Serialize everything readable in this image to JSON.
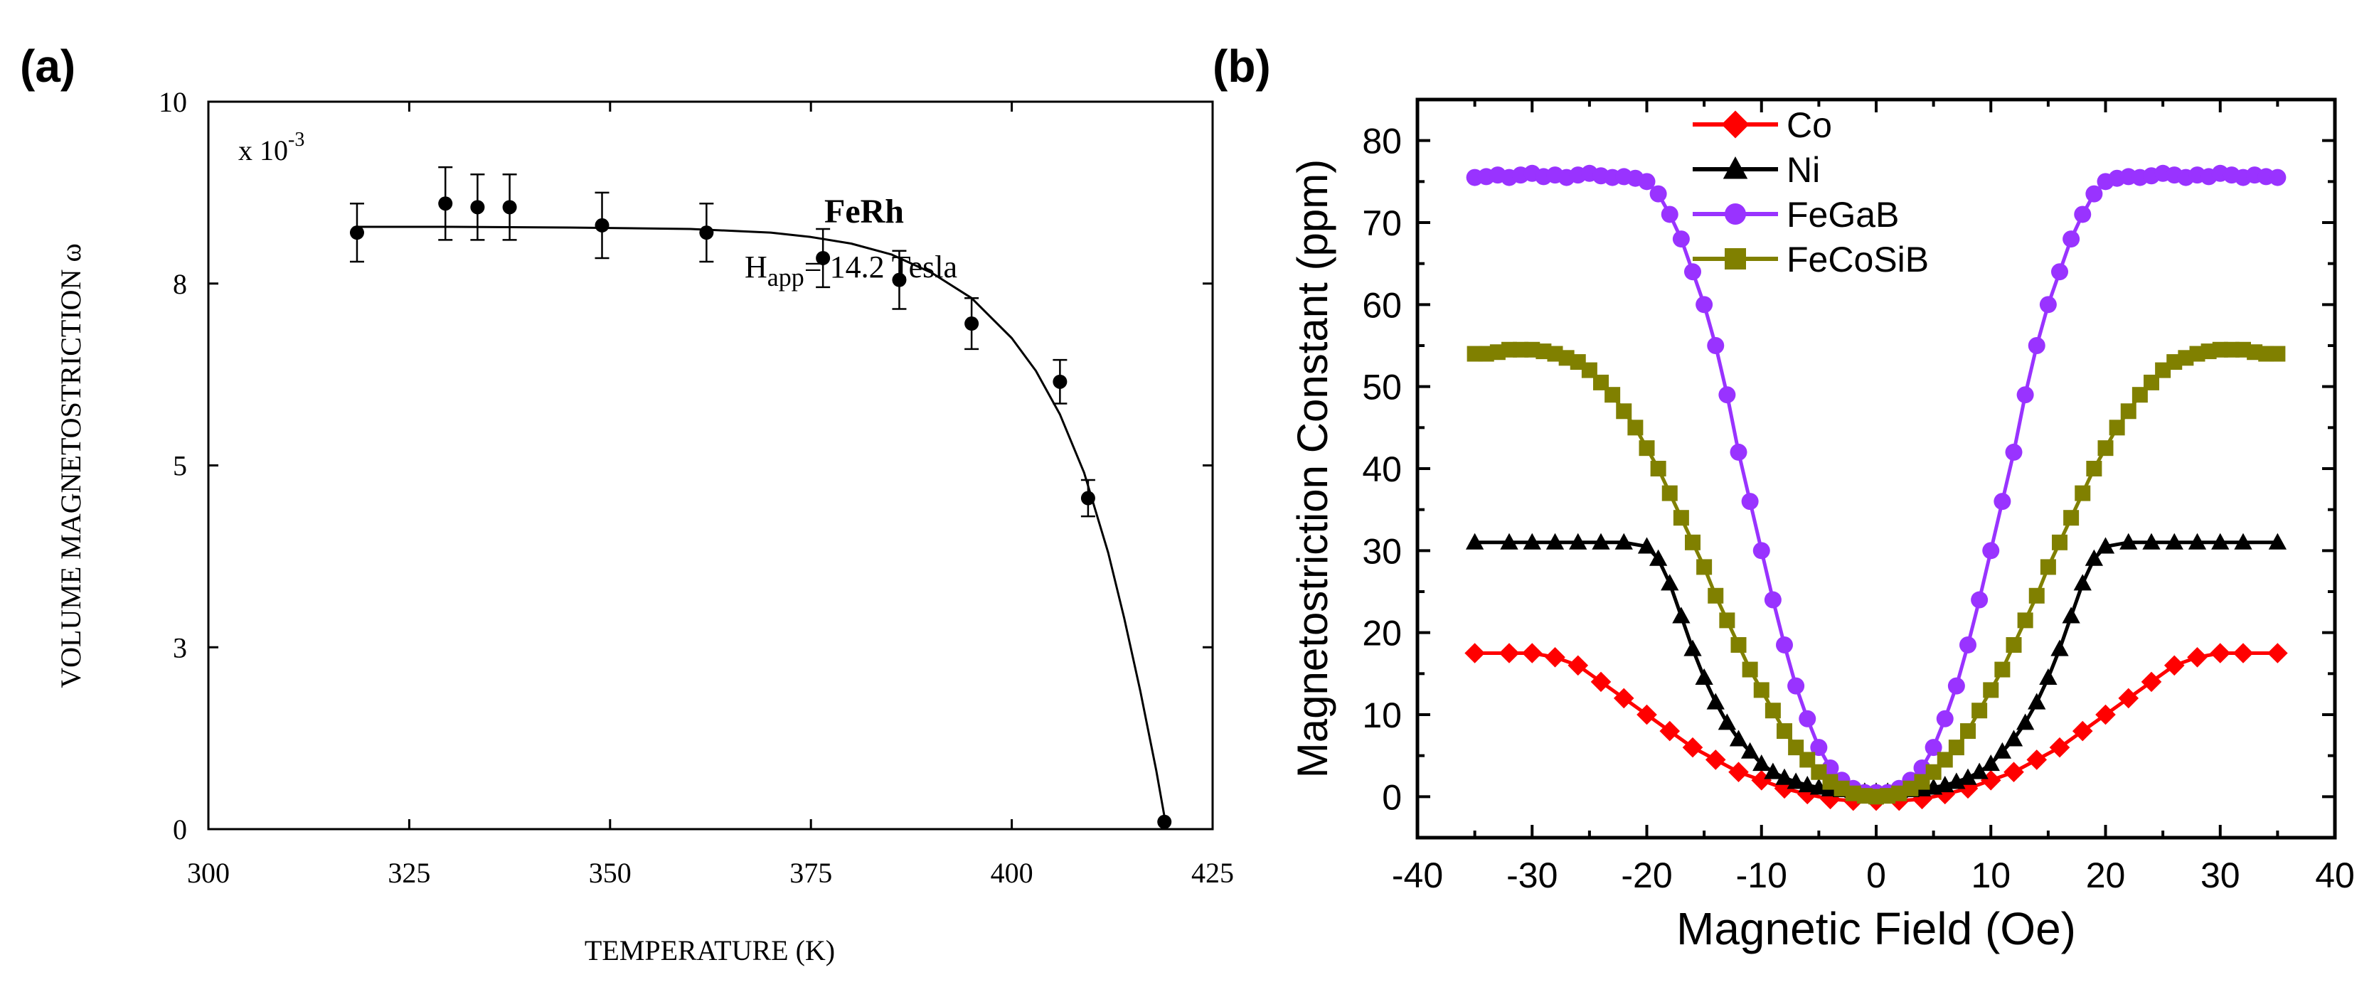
{
  "chart_data": [
    {
      "panel_label": "(a)",
      "type": "scatter",
      "title": "FeRh",
      "annotation": {
        "prefix": "H",
        "subscript": "app",
        "suffix": "= 14.2 Tesla"
      },
      "multiplier_label": "x 10",
      "multiplier_exponent": "-3",
      "xlabel": "TEMPERATURE  (K)",
      "ylabel": "VOLUME MAGNETOSTRICTION  ω",
      "xlim": [
        300,
        425
      ],
      "ylim": [
        0,
        10
      ],
      "x_ticks": [
        300,
        325,
        350,
        375,
        400,
        425
      ],
      "y_ticks": [
        0,
        2.5,
        5,
        7.5,
        10
      ],
      "y_tick_labels": [
        "0",
        "3",
        "5",
        "8",
        "10"
      ],
      "grid": false,
      "series": [
        {
          "points": [
            {
              "x": 318.5,
              "y": 8.2,
              "err": 0.4
            },
            {
              "x": 329.5,
              "y": 8.6,
              "err": 0.5
            },
            {
              "x": 333.5,
              "y": 8.55,
              "err": 0.45
            },
            {
              "x": 337.5,
              "y": 8.55,
              "err": 0.45
            },
            {
              "x": 349,
              "y": 8.3,
              "err": 0.45
            },
            {
              "x": 362,
              "y": 8.2,
              "err": 0.4
            },
            {
              "x": 376.5,
              "y": 7.85,
              "err": 0.4
            },
            {
              "x": 386,
              "y": 7.55,
              "err": 0.4
            },
            {
              "x": 395,
              "y": 6.95,
              "err": 0.35
            },
            {
              "x": 406,
              "y": 6.15,
              "err": 0.3
            },
            {
              "x": 409.5,
              "y": 4.55,
              "err": 0.25
            },
            {
              "x": 419,
              "y": 0.1,
              "err": 0
            }
          ]
        }
      ],
      "fit_curve": {
        "x": [
          318.5,
          330,
          345,
          360,
          370,
          375,
          380,
          385,
          390,
          395,
          400,
          403,
          406,
          409,
          412,
          414,
          416,
          418,
          419.2
        ],
        "y": [
          8.28,
          8.28,
          8.27,
          8.25,
          8.2,
          8.14,
          8.05,
          7.9,
          7.65,
          7.3,
          6.75,
          6.3,
          5.7,
          4.9,
          3.8,
          2.9,
          1.9,
          0.8,
          0.05
        ]
      }
    },
    {
      "panel_label": "(b)",
      "type": "line",
      "xlabel": "Magnetic Field (Oe)",
      "ylabel": "Magnetostriction Constant (ppm)",
      "xlim": [
        -40,
        40
      ],
      "ylim": [
        -5,
        85
      ],
      "x_ticks": [
        -40,
        -30,
        -20,
        -10,
        0,
        10,
        20,
        30,
        40
      ],
      "y_ticks": [
        0,
        10,
        20,
        30,
        40,
        50,
        60,
        70,
        80
      ],
      "grid": false,
      "legend_position": "top-center",
      "series": [
        {
          "name": "Co",
          "color": "#ff0000",
          "marker": "diamond",
          "x": [
            -35,
            -32,
            -30,
            -28,
            -26,
            -24,
            -22,
            -20,
            -18,
            -16,
            -14,
            -12,
            -10,
            -8,
            -6,
            -4,
            -2,
            0,
            2,
            4,
            6,
            8,
            10,
            12,
            14,
            16,
            18,
            20,
            22,
            24,
            26,
            28,
            30,
            32,
            35
          ],
          "y": [
            17.5,
            17.5,
            17.5,
            17,
            16,
            14,
            12,
            10,
            8,
            6,
            4.5,
            3,
            2,
            1,
            0.3,
            -0.3,
            -0.5,
            -0.5,
            -0.5,
            -0.3,
            0.3,
            1,
            2,
            3,
            4.5,
            6,
            8,
            10,
            12,
            14,
            16,
            17,
            17.5,
            17.5,
            17.5
          ]
        },
        {
          "name": "Ni",
          "color": "#000000",
          "marker": "triangle",
          "x": [
            -35,
            -32,
            -30,
            -28,
            -26,
            -24,
            -22,
            -20,
            -19,
            -18,
            -17,
            -16,
            -15,
            -14,
            -13,
            -12,
            -11,
            -10,
            -9,
            -8,
            -7,
            -6,
            -5,
            -4,
            -3,
            -2,
            -1,
            0,
            1,
            2,
            3,
            4,
            5,
            6,
            7,
            8,
            9,
            10,
            11,
            12,
            13,
            14,
            15,
            16,
            17,
            18,
            19,
            20,
            22,
            24,
            26,
            28,
            30,
            32,
            35
          ],
          "y": [
            31,
            31,
            31,
            31,
            31,
            31,
            31,
            30.5,
            29,
            26,
            22,
            18,
            14.5,
            11.5,
            9,
            7,
            5.5,
            4,
            3,
            2.3,
            1.8,
            1.4,
            1.1,
            0.9,
            0.8,
            0.7,
            0.6,
            0.6,
            0.6,
            0.7,
            0.8,
            0.9,
            1.1,
            1.4,
            1.8,
            2.3,
            3,
            4,
            5.5,
            7,
            9,
            11.5,
            14.5,
            18,
            22,
            26,
            29,
            30.5,
            31,
            31,
            31,
            31,
            31,
            31,
            31
          ]
        },
        {
          "name": "FeGaB",
          "color": "#9933ff",
          "marker": "circle",
          "x": [
            -35,
            -34,
            -33,
            -32,
            -31,
            -30,
            -29,
            -28,
            -27,
            -26,
            -25,
            -24,
            -23,
            -22,
            -21,
            -20,
            -19,
            -18,
            -17,
            -16,
            -15,
            -14,
            -13,
            -12,
            -11,
            -10,
            -9,
            -8,
            -7,
            -6,
            -5,
            -4,
            -3,
            -2,
            -1,
            0,
            1,
            2,
            3,
            4,
            5,
            6,
            7,
            8,
            9,
            10,
            11,
            12,
            13,
            14,
            15,
            16,
            17,
            18,
            19,
            20,
            21,
            22,
            23,
            24,
            25,
            26,
            27,
            28,
            29,
            30,
            31,
            32,
            33,
            34,
            35
          ],
          "y": [
            75.5,
            75.6,
            75.8,
            75.5,
            75.8,
            76,
            75.6,
            75.8,
            75.5,
            75.8,
            76,
            75.7,
            75.5,
            75.6,
            75.4,
            75,
            73.5,
            71,
            68,
            64,
            60,
            55,
            49,
            42,
            36,
            30,
            24,
            18.5,
            13.5,
            9.5,
            6,
            3.5,
            2,
            1,
            0.5,
            0.5,
            0.5,
            1,
            2,
            3.5,
            6,
            9.5,
            13.5,
            18.5,
            24,
            30,
            36,
            42,
            49,
            55,
            60,
            64,
            68,
            71,
            73.5,
            75,
            75.4,
            75.6,
            75.5,
            75.7,
            76,
            75.8,
            75.5,
            75.8,
            75.6,
            76,
            75.8,
            75.5,
            75.8,
            75.6,
            75.5
          ]
        },
        {
          "name": "FeCoSiB",
          "color": "#808000",
          "marker": "square",
          "x": [
            -35,
            -34,
            -33,
            -32,
            -31,
            -30,
            -29,
            -28,
            -27,
            -26,
            -25,
            -24,
            -23,
            -22,
            -21,
            -20,
            -19,
            -18,
            -17,
            -16,
            -15,
            -14,
            -13,
            -12,
            -11,
            -10,
            -9,
            -8,
            -7,
            -6,
            -5,
            -4,
            -3,
            -2,
            -1,
            0,
            1,
            2,
            3,
            4,
            5,
            6,
            7,
            8,
            9,
            10,
            11,
            12,
            13,
            14,
            15,
            16,
            17,
            18,
            19,
            20,
            21,
            22,
            23,
            24,
            25,
            26,
            27,
            28,
            29,
            30,
            31,
            32,
            33,
            34,
            35
          ],
          "y": [
            54,
            54,
            54.2,
            54.5,
            54.5,
            54.5,
            54.3,
            54,
            53.5,
            53,
            52,
            50.5,
            49,
            47,
            45,
            42.5,
            40,
            37,
            34,
            31,
            28,
            24.5,
            21.5,
            18.5,
            15.5,
            13,
            10.5,
            8,
            6,
            4.5,
            3,
            1.8,
            1,
            0.4,
            0.1,
            0,
            0.1,
            0.4,
            1,
            1.8,
            3,
            4.5,
            6,
            8,
            10.5,
            13,
            15.5,
            18.5,
            21.5,
            24.5,
            28,
            31,
            34,
            37,
            40,
            42.5,
            45,
            47,
            49,
            50.5,
            52,
            53,
            53.5,
            54,
            54.3,
            54.5,
            54.5,
            54.5,
            54.2,
            54,
            54
          ]
        }
      ]
    }
  ]
}
